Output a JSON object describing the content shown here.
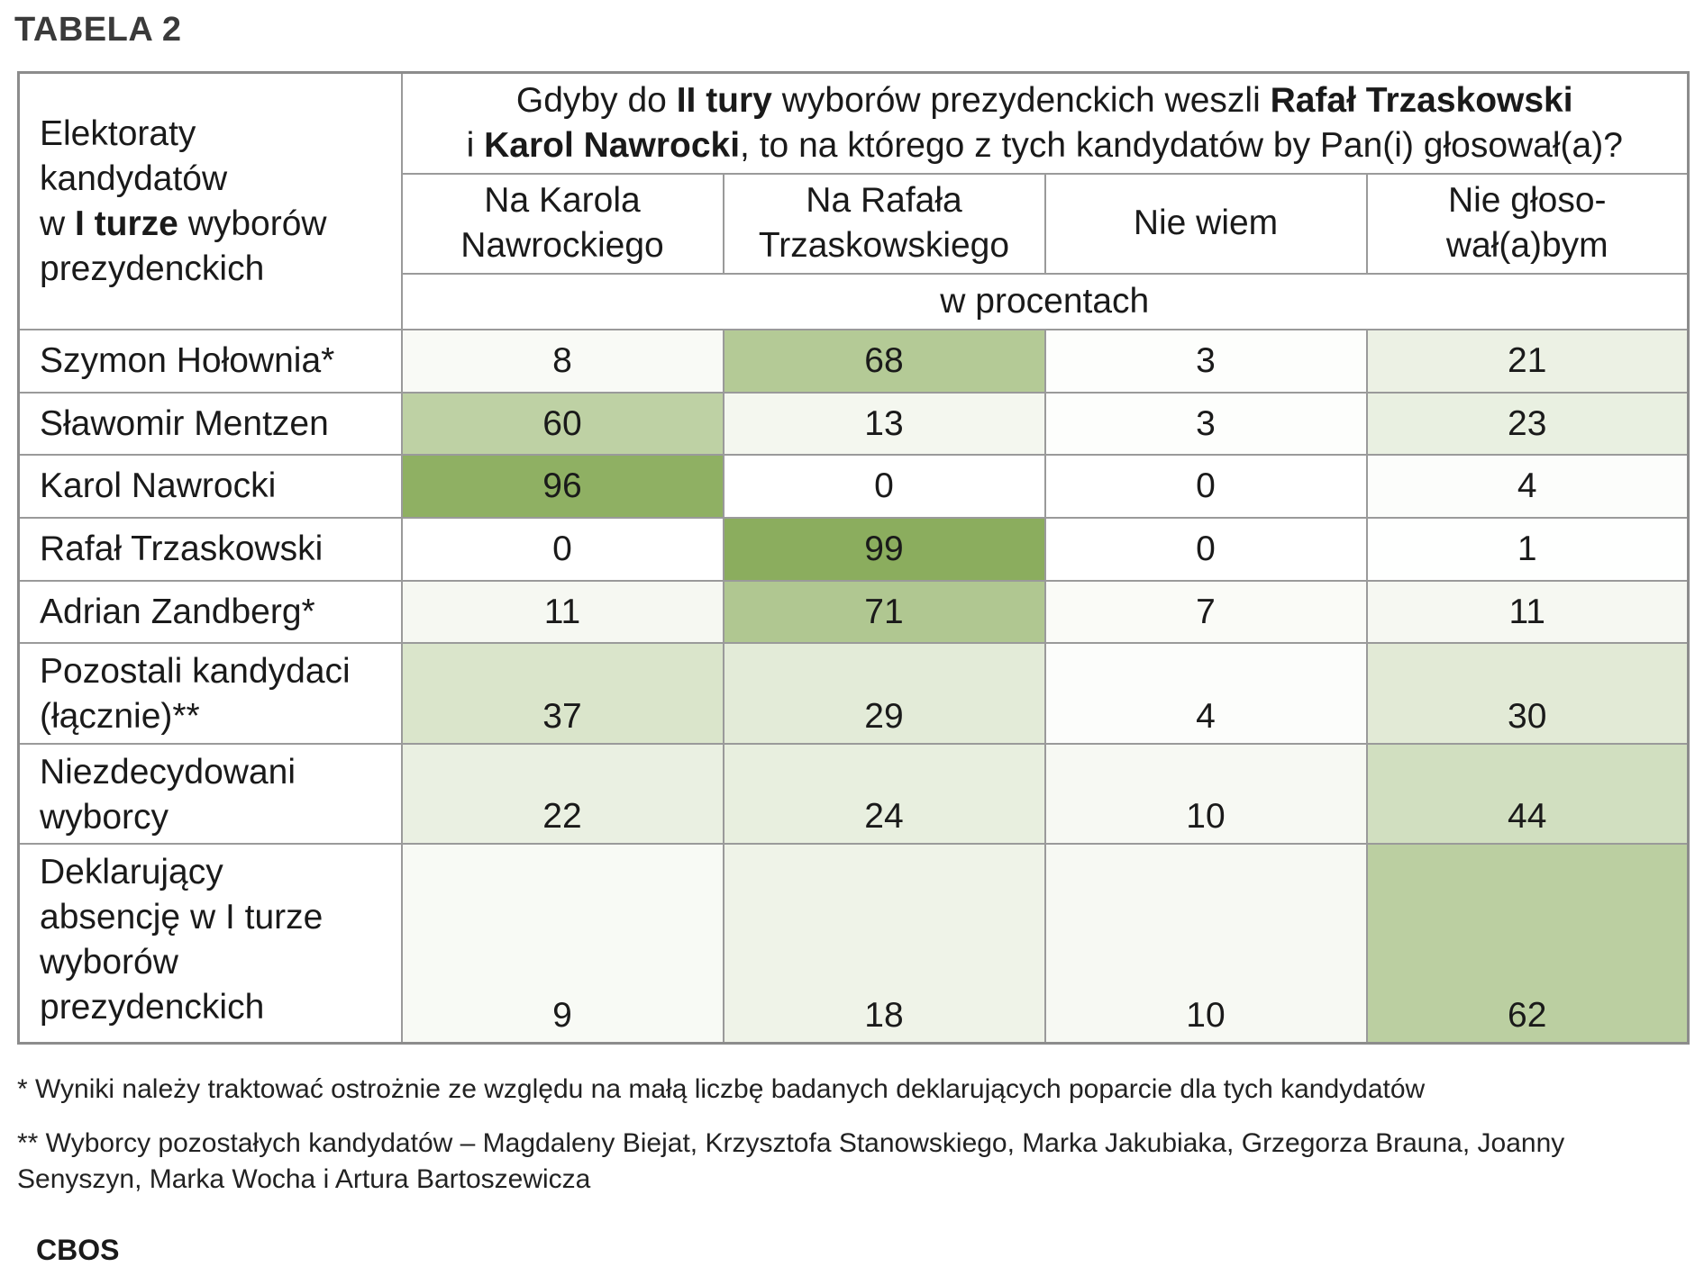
{
  "table_title": "TABELA 2",
  "header": {
    "row_header": [
      "Elektoraty",
      "kandydatów",
      "w ",
      "I turze",
      " wyborów",
      "prezydenckich"
    ],
    "question_parts": [
      {
        "t": "Gdyby do ",
        "b": false
      },
      {
        "t": "II tury",
        "b": true
      },
      {
        "t": " wyborów prezydenckich weszli ",
        "b": false
      },
      {
        "t": "Rafał Trzaskowski",
        "b": true
      },
      {
        "t": "\n",
        "b": false
      },
      {
        "t": "i ",
        "b": false
      },
      {
        "t": "Karol Nawrocki",
        "b": true
      },
      {
        "t": ", to na którego z tych kandydatów by Pan(i) głosował(a)?",
        "b": false
      }
    ],
    "unit": "w procentach"
  },
  "colors": {
    "scale_low": "#ffffff",
    "scale_high": "#8aac5c",
    "border": "#9a9a9a"
  },
  "chart_data": {
    "type": "table",
    "title": "TABELA 2",
    "columns": [
      "Na Karola\nNawrockiego",
      "Na Rafała\nTrzaskowskiego",
      "Nie wiem",
      "Nie głoso-\nwał(a)bym"
    ],
    "rows": [
      {
        "label": "Szymon Hołownia*",
        "values": [
          8,
          68,
          3,
          21
        ]
      },
      {
        "label": "Sławomir Mentzen",
        "values": [
          60,
          13,
          3,
          23
        ]
      },
      {
        "label": "Karol Nawrocki",
        "values": [
          96,
          0,
          0,
          4
        ]
      },
      {
        "label": "Rafał Trzaskowski",
        "values": [
          0,
          99,
          0,
          1
        ]
      },
      {
        "label": "Adrian Zandberg*",
        "values": [
          11,
          71,
          7,
          11
        ]
      },
      {
        "label": "Pozostali kandydaci\n(łącznie)**",
        "values": [
          37,
          29,
          4,
          30
        ]
      },
      {
        "label": "Niezdecydowani\nwyborcy",
        "values": [
          22,
          24,
          10,
          44
        ]
      },
      {
        "label": "Deklarujący\nabsencję w I turze\nwyborów\nprezydenckich",
        "values": [
          9,
          18,
          10,
          62
        ]
      }
    ]
  },
  "notes": [
    "* Wyniki należy traktować ostrożnie ze względu na małą liczbę badanych deklarujących poparcie dla tych kandydatów",
    "** Wyborcy pozostałych kandydatów – Magdaleny Biejat, Krzysztofa Stanowskiego, Marka Jakubiaka, Grzegorza Brauna, Joanny Senyszyn, Marka Wocha i Artura Bartoszewicza"
  ],
  "source": "CBOS"
}
